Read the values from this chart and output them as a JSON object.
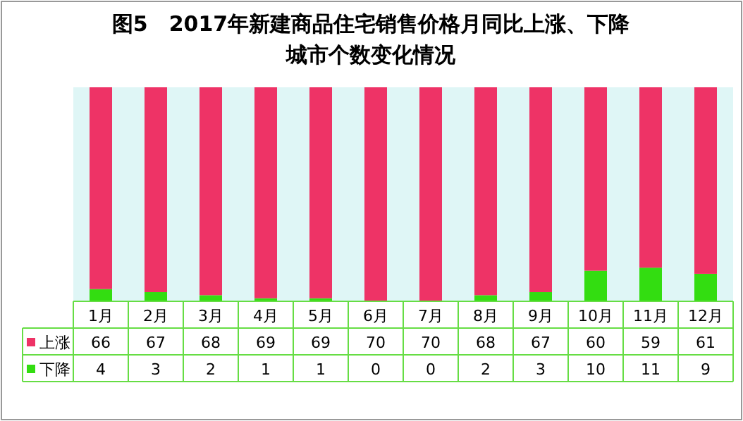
{
  "chart_data": {
    "type": "bar",
    "title": "图5　2017年新建商品住宅销售价格月同比上涨、下降城市个数变化情况",
    "categories": [
      "1月",
      "2月",
      "3月",
      "4月",
      "5月",
      "6月",
      "7月",
      "8月",
      "9月",
      "10月",
      "11月",
      "12月"
    ],
    "stacked": true,
    "data_labels": true,
    "legend": "bottom",
    "series": [
      {
        "name": "下降",
        "color": "#33dd11",
        "values": [
          4,
          3,
          2,
          1,
          1,
          0,
          0,
          2,
          3,
          10,
          11,
          9
        ]
      },
      {
        "name": "上涨",
        "color": "#ee3366",
        "values": [
          66,
          67,
          68,
          69,
          69,
          70,
          70,
          68,
          67,
          60,
          59,
          61
        ]
      }
    ]
  }
}
